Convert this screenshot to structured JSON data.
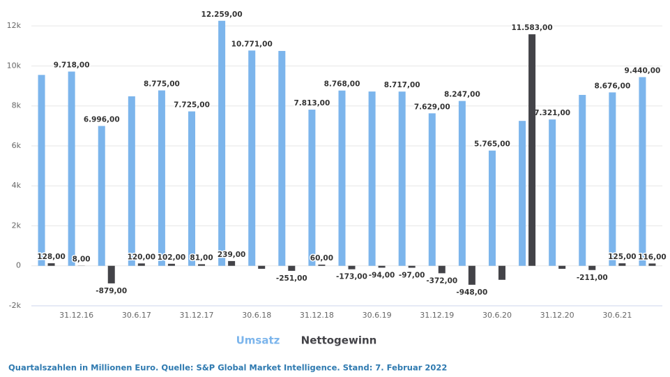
{
  "chart_data": {
    "type": "bar",
    "categories": [
      null,
      "31.12.16",
      null,
      "30.6.17",
      null,
      "31.12.17",
      null,
      "30.6.18",
      null,
      "31.12.18",
      null,
      "30.6.19",
      null,
      "31.12.19",
      null,
      "30.6.20",
      null,
      "31.12.20",
      null,
      "30.6.21",
      null
    ],
    "series": [
      {
        "name": "Umsatz",
        "color": "#7cb5ec",
        "values": [
          9550,
          9718,
          6996,
          8480,
          8775,
          7725,
          12259,
          10771,
          10750,
          7813,
          8768,
          8720,
          8717,
          7629,
          8247,
          5765,
          7250,
          7321,
          8550,
          8676,
          9440
        ],
        "value_labels": [
          null,
          "9.718,00",
          "6.996,00",
          null,
          "8.775,00",
          "7.725,00",
          "12.259,00",
          "10.771,00",
          null,
          "7.813,00",
          "8.768,00",
          null,
          "8.717,00",
          "7.629,00",
          "8.247,00",
          "5.765,00",
          null,
          "7.321,00",
          null,
          "8.676,00",
          "9.440,00"
        ]
      },
      {
        "name": "Nettogewinn",
        "color": "#434348",
        "values": [
          128,
          8,
          -879,
          120,
          102,
          81,
          239,
          -150,
          -251,
          60,
          -173,
          -94,
          -97,
          -372,
          -948,
          -700,
          11583,
          -150,
          -211,
          125,
          116
        ],
        "value_labels": [
          "128,00",
          "8,00",
          "-879,00",
          "120,00",
          "102,00",
          "81,00",
          "239,00",
          null,
          "-251,00",
          "60,00",
          "-173,00",
          "-94,00",
          "-97,00",
          "-372,00",
          "-948,00",
          null,
          "11.583,00",
          null,
          "-211,00",
          "125,00",
          "116,00"
        ]
      }
    ],
    "ylim": [
      -2000,
      12600
    ],
    "yticks": [
      {
        "value": -2000,
        "label": "-2k"
      },
      0,
      {
        "value": 2000,
        "label": "2k"
      },
      {
        "value": 4000,
        "label": "4k"
      },
      {
        "value": 6000,
        "label": "6k"
      },
      {
        "value": 8000,
        "label": "8k"
      },
      {
        "value": 10000,
        "label": "10k"
      },
      {
        "value": 12000,
        "label": "12k"
      }
    ],
    "grid": true,
    "footnote": "Quartalszahlen in Millionen Euro. Quelle:  S&P Global Market Intelligence. Stand: 7. Februar 2022"
  }
}
